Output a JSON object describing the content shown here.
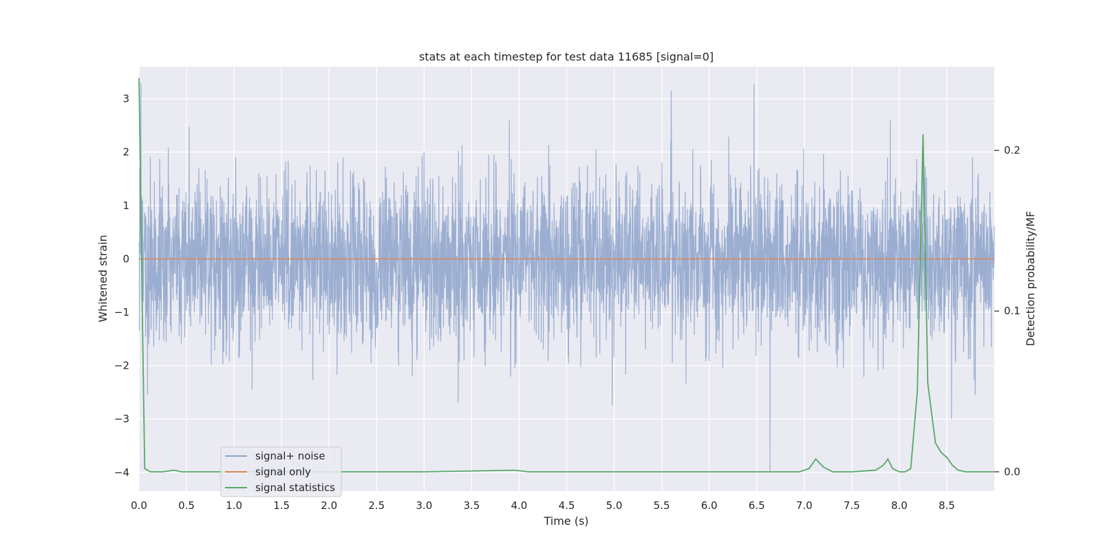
{
  "chart_data": {
    "type": "line",
    "title": "stats at each timestep for test data 11685 [signal=0]",
    "xlabel": "Time (s)",
    "ylabel": "Whitened strain",
    "y2label": "Detection probability/MF",
    "xlim": [
      0.0,
      9.0
    ],
    "ylim": [
      -4.35,
      3.6
    ],
    "y2lim": [
      -0.012,
      0.252
    ],
    "x_ticks": [
      0.0,
      0.5,
      1.0,
      1.5,
      2.0,
      2.5,
      3.0,
      3.5,
      4.0,
      4.5,
      5.0,
      5.5,
      6.0,
      6.5,
      7.0,
      7.5,
      8.0,
      8.5
    ],
    "x_tick_labels": [
      "0.0",
      "0.5",
      "1.0",
      "1.5",
      "2.0",
      "2.5",
      "3.0",
      "3.5",
      "4.0",
      "4.5",
      "5.0",
      "5.5",
      "6.0",
      "6.5",
      "7.0",
      "7.5",
      "8.0",
      "8.5"
    ],
    "y_ticks": [
      3,
      2,
      1,
      0,
      -1,
      -2,
      -3,
      -4
    ],
    "y_tick_labels": [
      "3",
      "2",
      "1",
      "0",
      "−1",
      "−2",
      "−3",
      "−4"
    ],
    "y2_ticks": [
      0.2,
      0.1,
      0.0
    ],
    "y2_tick_labels": [
      "0.2",
      "0.1",
      "0.0"
    ],
    "grid": true,
    "legend_position": "lower-left",
    "series": [
      {
        "name": "signal+ noise",
        "color": "#4c72b0",
        "alpha": 0.5,
        "axis": "left",
        "noise_std": 0.75,
        "peaks": [
          {
            "x": 0.02,
            "y": 3.3
          },
          {
            "x": 0.09,
            "y": -2.55
          },
          {
            "x": 1.19,
            "y": -2.45
          },
          {
            "x": 3.36,
            "y": -2.7
          },
          {
            "x": 5.6,
            "y": 3.15
          },
          {
            "x": 4.98,
            "y": -2.75
          },
          {
            "x": 6.47,
            "y": 3.27
          },
          {
            "x": 6.64,
            "y": -4.0
          },
          {
            "x": 8.25,
            "y": 2.25
          },
          {
            "x": 8.55,
            "y": -3.0
          },
          {
            "x": 8.8,
            "y": -2.55
          }
        ]
      },
      {
        "name": "signal only",
        "color": "#dd8452",
        "axis": "left",
        "x": [
          0.0,
          9.0
        ],
        "y": [
          0.0,
          0.0
        ]
      },
      {
        "name": "signal statistics",
        "color": "#55a868",
        "axis": "right",
        "x": [
          0.0,
          0.04,
          0.06,
          0.12,
          0.25,
          0.37,
          0.45,
          1.0,
          2.0,
          3.0,
          3.95,
          4.1,
          5.0,
          6.0,
          6.95,
          7.05,
          7.12,
          7.2,
          7.3,
          7.5,
          7.75,
          7.83,
          7.88,
          7.93,
          8.0,
          8.06,
          8.12,
          8.19,
          8.25,
          8.3,
          8.38,
          8.44,
          8.5,
          8.56,
          8.62,
          8.7,
          9.0
        ],
        "y": [
          0.245,
          0.08,
          0.002,
          0.0,
          0.0,
          0.001,
          0.0,
          0.0,
          0.0,
          0.0,
          0.001,
          0.0,
          0.0,
          0.0,
          0.0,
          0.002,
          0.008,
          0.003,
          0.0,
          0.0,
          0.001,
          0.004,
          0.008,
          0.002,
          0.0,
          0.0,
          0.002,
          0.05,
          0.21,
          0.055,
          0.018,
          0.012,
          0.009,
          0.004,
          0.001,
          0.0,
          0.0
        ]
      }
    ]
  }
}
